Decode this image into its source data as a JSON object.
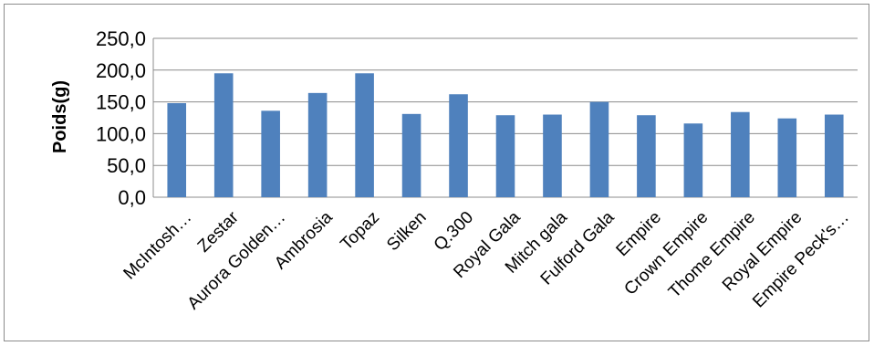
{
  "chart_data": {
    "type": "bar",
    "title": "",
    "xlabel": "",
    "ylabel": "Poids(g)",
    "ylim": [
      0,
      250
    ],
    "yticks": [
      0,
      50,
      100,
      150,
      200,
      250
    ],
    "ytick_labels": [
      "0,0",
      "50,0",
      "100,0",
      "150,0",
      "200,0",
      "250,0"
    ],
    "grid": true,
    "legend": "none",
    "bar_color": "#4f81bd",
    "categories": [
      "McIntosh…",
      "Zestar",
      "Aurora Golden…",
      "Ambrosia",
      "Topaz",
      "Silken",
      "Q.300",
      "Royal Gala",
      "Mitch gala",
      "Fulford Gala",
      "Empire",
      "Crown Empire",
      "Thome Empire",
      "Royal Empire",
      "Empire Peck's…"
    ],
    "values": [
      148,
      195,
      136,
      164,
      195,
      131,
      162,
      129,
      130,
      150,
      129,
      116,
      134,
      124,
      130
    ]
  }
}
